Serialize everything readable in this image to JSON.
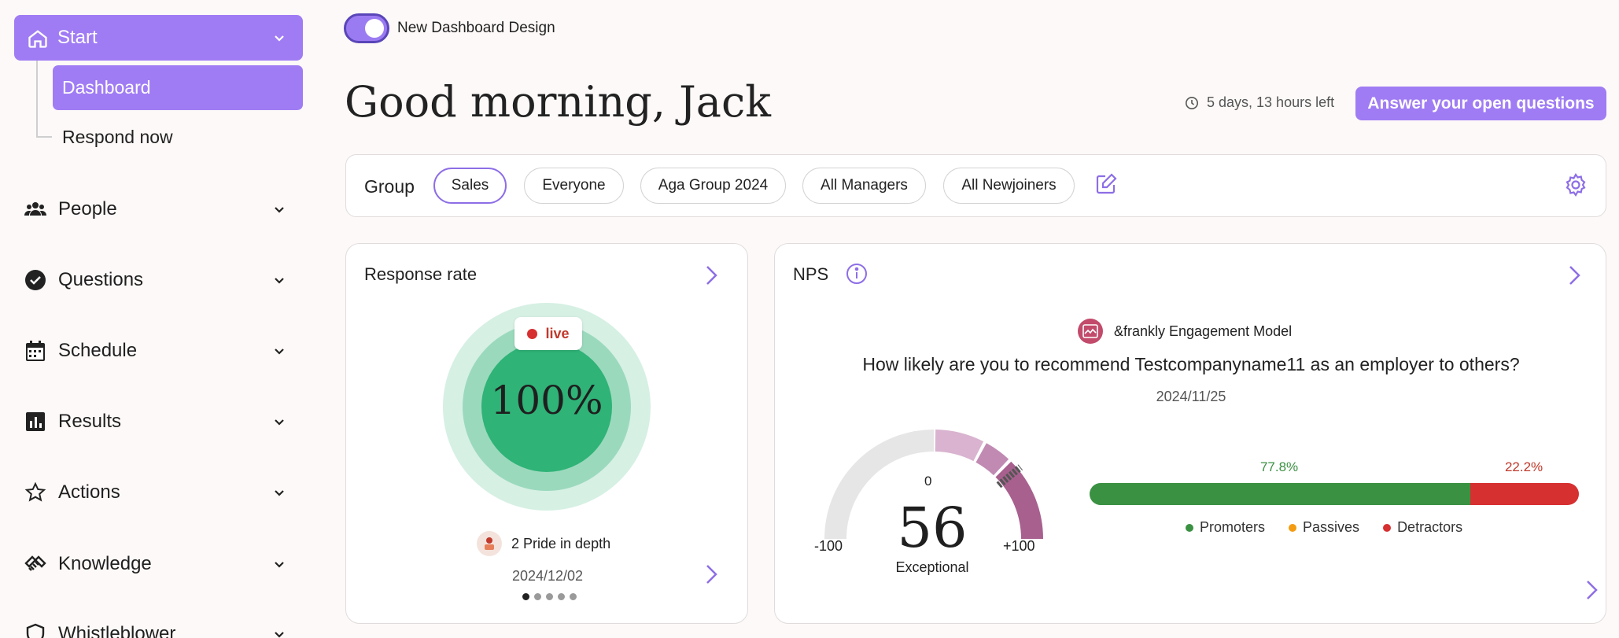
{
  "sidebar": {
    "start_label": "Start",
    "sub_items": [
      "Dashboard",
      "Respond now"
    ],
    "items": [
      {
        "label": "People",
        "icon": "people-icon"
      },
      {
        "label": "Questions",
        "icon": "check-circle-icon"
      },
      {
        "label": "Schedule",
        "icon": "calendar-icon"
      },
      {
        "label": "Results",
        "icon": "bar-chart-icon"
      },
      {
        "label": "Actions",
        "icon": "star-icon"
      },
      {
        "label": "Knowledge",
        "icon": "handshake-icon"
      },
      {
        "label": "Whistleblower",
        "icon": "shield-icon"
      }
    ]
  },
  "header": {
    "toggle_label": "New Dashboard Design",
    "toggle_on": true,
    "greeting": "Good morning, Jack",
    "time_left": "5 days, 13 hours left",
    "answer_button": "Answer your open questions"
  },
  "groups": {
    "label": "Group",
    "chips": [
      "Sales",
      "Everyone",
      "Aga Group 2024",
      "All Managers",
      "All Newjoiners"
    ],
    "active": "Sales"
  },
  "response_card": {
    "title": "Response rate",
    "live_label": "live",
    "rate": "100%",
    "rate_fraction": 1.0,
    "survey_name": "2 Pride in depth",
    "survey_date": "2024/12/02",
    "page_count": 5,
    "page_active": 0
  },
  "nps_card": {
    "title": "NPS",
    "model_name": "&frankly Engagement Model",
    "question": "How likely are you to recommend Testcompanyname11 as an employer to others?",
    "date": "2024/11/25",
    "gauge": {
      "min": "-100",
      "max": "+100",
      "zero": "0",
      "score": "56",
      "score_value": 56,
      "category": "Exceptional"
    },
    "promoters_pct": "77.8%",
    "detractors_pct": "22.2%",
    "promoters_value": 77.8,
    "passives_value": 0,
    "detractors_value": 22.2,
    "legend": [
      "Promoters",
      "Passives",
      "Detractors"
    ],
    "colors": {
      "promoters": "#3b9142",
      "passives": "#f39c12",
      "detractors": "#d63031"
    }
  }
}
